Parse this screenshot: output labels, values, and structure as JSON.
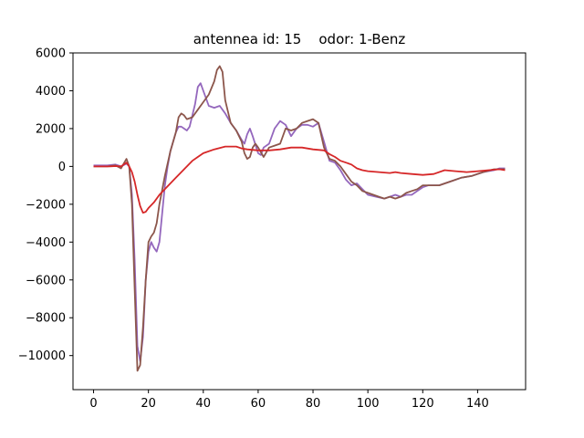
{
  "chart_data": {
    "type": "line",
    "title": "antennea id: 15    odor: 1-Benz",
    "xlabel": "",
    "ylabel": "",
    "xlim": [
      -7.5,
      157.5
    ],
    "ylim": [
      -11800,
      6000
    ],
    "grid": false,
    "x_ticks": [
      0,
      20,
      40,
      60,
      80,
      100,
      120,
      140
    ],
    "y_ticks": [
      -10000,
      -8000,
      -6000,
      -4000,
      -2000,
      0,
      2000,
      4000,
      6000
    ],
    "series": [
      {
        "color": "#9467bd",
        "points": [
          [
            0,
            50
          ],
          [
            5,
            50
          ],
          [
            8,
            100
          ],
          [
            10,
            0
          ],
          [
            12,
            150
          ],
          [
            13,
            0
          ],
          [
            14,
            -1500
          ],
          [
            15,
            -5000
          ],
          [
            16,
            -9500
          ],
          [
            17,
            -10300
          ],
          [
            18,
            -9000
          ],
          [
            19,
            -6000
          ],
          [
            20,
            -4500
          ],
          [
            21,
            -4000
          ],
          [
            22,
            -4300
          ],
          [
            23,
            -4500
          ],
          [
            24,
            -4000
          ],
          [
            25,
            -2500
          ],
          [
            26,
            -1000
          ],
          [
            27,
            0
          ],
          [
            28,
            800
          ],
          [
            30,
            1800
          ],
          [
            31,
            2100
          ],
          [
            32,
            2100
          ],
          [
            33,
            2000
          ],
          [
            34,
            1900
          ],
          [
            35,
            2100
          ],
          [
            36,
            2700
          ],
          [
            37,
            3300
          ],
          [
            38,
            4200
          ],
          [
            39,
            4400
          ],
          [
            40,
            4000
          ],
          [
            42,
            3200
          ],
          [
            44,
            3100
          ],
          [
            46,
            3200
          ],
          [
            48,
            2800
          ],
          [
            50,
            2300
          ],
          [
            52,
            1900
          ],
          [
            54,
            1400
          ],
          [
            55,
            1200
          ],
          [
            56,
            1700
          ],
          [
            57,
            2000
          ],
          [
            58,
            1600
          ],
          [
            60,
            700
          ],
          [
            61,
            600
          ],
          [
            62,
            1000
          ],
          [
            64,
            1200
          ],
          [
            66,
            2000
          ],
          [
            68,
            2400
          ],
          [
            70,
            2200
          ],
          [
            72,
            1600
          ],
          [
            74,
            2000
          ],
          [
            76,
            2200
          ],
          [
            78,
            2200
          ],
          [
            80,
            2100
          ],
          [
            82,
            2300
          ],
          [
            84,
            1300
          ],
          [
            86,
            300
          ],
          [
            88,
            200
          ],
          [
            90,
            -200
          ],
          [
            92,
            -700
          ],
          [
            94,
            -1000
          ],
          [
            96,
            -900
          ],
          [
            98,
            -1200
          ],
          [
            100,
            -1500
          ],
          [
            103,
            -1600
          ],
          [
            106,
            -1700
          ],
          [
            108,
            -1600
          ],
          [
            110,
            -1500
          ],
          [
            112,
            -1600
          ],
          [
            114,
            -1500
          ],
          [
            116,
            -1500
          ],
          [
            118,
            -1300
          ],
          [
            120,
            -1100
          ],
          [
            122,
            -1000
          ],
          [
            124,
            -1000
          ],
          [
            126,
            -1000
          ],
          [
            130,
            -800
          ],
          [
            134,
            -600
          ],
          [
            138,
            -500
          ],
          [
            142,
            -300
          ],
          [
            146,
            -200
          ],
          [
            148,
            -100
          ],
          [
            150,
            -100
          ]
        ]
      },
      {
        "color": "#8c564b",
        "points": [
          [
            0,
            0
          ],
          [
            5,
            0
          ],
          [
            8,
            50
          ],
          [
            10,
            -100
          ],
          [
            12,
            400
          ],
          [
            13,
            0
          ],
          [
            14,
            -2000
          ],
          [
            15,
            -6500
          ],
          [
            16,
            -10800
          ],
          [
            17,
            -10500
          ],
          [
            18,
            -8500
          ],
          [
            19,
            -6000
          ],
          [
            20,
            -4000
          ],
          [
            21,
            -3700
          ],
          [
            22,
            -3500
          ],
          [
            23,
            -3000
          ],
          [
            24,
            -2000
          ],
          [
            26,
            -500
          ],
          [
            28,
            800
          ],
          [
            30,
            1800
          ],
          [
            31,
            2600
          ],
          [
            32,
            2800
          ],
          [
            33,
            2700
          ],
          [
            34,
            2500
          ],
          [
            36,
            2600
          ],
          [
            38,
            3000
          ],
          [
            40,
            3400
          ],
          [
            42,
            3800
          ],
          [
            44,
            4500
          ],
          [
            45,
            5100
          ],
          [
            46,
            5300
          ],
          [
            47,
            5000
          ],
          [
            48,
            3500
          ],
          [
            50,
            2300
          ],
          [
            52,
            1900
          ],
          [
            54,
            1300
          ],
          [
            55,
            700
          ],
          [
            56,
            400
          ],
          [
            57,
            500
          ],
          [
            58,
            1000
          ],
          [
            59,
            1200
          ],
          [
            60,
            1000
          ],
          [
            62,
            500
          ],
          [
            64,
            1000
          ],
          [
            66,
            1100
          ],
          [
            68,
            1200
          ],
          [
            70,
            2000
          ],
          [
            72,
            1900
          ],
          [
            74,
            2000
          ],
          [
            76,
            2300
          ],
          [
            78,
            2400
          ],
          [
            80,
            2500
          ],
          [
            82,
            2300
          ],
          [
            84,
            1000
          ],
          [
            86,
            400
          ],
          [
            88,
            300
          ],
          [
            90,
            0
          ],
          [
            92,
            -400
          ],
          [
            94,
            -800
          ],
          [
            96,
            -1000
          ],
          [
            98,
            -1300
          ],
          [
            100,
            -1400
          ],
          [
            102,
            -1500
          ],
          [
            104,
            -1600
          ],
          [
            106,
            -1700
          ],
          [
            108,
            -1600
          ],
          [
            110,
            -1700
          ],
          [
            112,
            -1600
          ],
          [
            114,
            -1400
          ],
          [
            116,
            -1300
          ],
          [
            118,
            -1200
          ],
          [
            120,
            -1000
          ],
          [
            122,
            -1000
          ],
          [
            124,
            -1000
          ],
          [
            126,
            -1000
          ],
          [
            130,
            -800
          ],
          [
            134,
            -600
          ],
          [
            138,
            -500
          ],
          [
            142,
            -300
          ],
          [
            146,
            -150
          ],
          [
            148,
            -150
          ],
          [
            150,
            -150
          ]
        ]
      },
      {
        "color": "#d62728",
        "points": [
          [
            0,
            0
          ],
          [
            6,
            0
          ],
          [
            8,
            20
          ],
          [
            10,
            0
          ],
          [
            12,
            200
          ],
          [
            13,
            0
          ],
          [
            14,
            -300
          ],
          [
            15,
            -800
          ],
          [
            16,
            -1500
          ],
          [
            17,
            -2100
          ],
          [
            18,
            -2450
          ],
          [
            19,
            -2400
          ],
          [
            20,
            -2200
          ],
          [
            22,
            -1900
          ],
          [
            24,
            -1500
          ],
          [
            26,
            -1200
          ],
          [
            28,
            -900
          ],
          [
            30,
            -600
          ],
          [
            32,
            -300
          ],
          [
            34,
            0
          ],
          [
            36,
            300
          ],
          [
            38,
            500
          ],
          [
            40,
            700
          ],
          [
            44,
            900
          ],
          [
            48,
            1050
          ],
          [
            52,
            1050
          ],
          [
            54,
            950
          ],
          [
            56,
            900
          ],
          [
            60,
            850
          ],
          [
            64,
            850
          ],
          [
            68,
            900
          ],
          [
            72,
            1000
          ],
          [
            76,
            1000
          ],
          [
            80,
            900
          ],
          [
            84,
            850
          ],
          [
            86,
            650
          ],
          [
            88,
            500
          ],
          [
            90,
            300
          ],
          [
            92,
            200
          ],
          [
            94,
            100
          ],
          [
            96,
            -100
          ],
          [
            98,
            -200
          ],
          [
            100,
            -250
          ],
          [
            104,
            -300
          ],
          [
            108,
            -350
          ],
          [
            110,
            -300
          ],
          [
            112,
            -350
          ],
          [
            116,
            -400
          ],
          [
            120,
            -450
          ],
          [
            124,
            -400
          ],
          [
            128,
            -200
          ],
          [
            132,
            -250
          ],
          [
            136,
            -300
          ],
          [
            140,
            -250
          ],
          [
            144,
            -200
          ],
          [
            148,
            -150
          ],
          [
            150,
            -200
          ]
        ]
      }
    ]
  }
}
